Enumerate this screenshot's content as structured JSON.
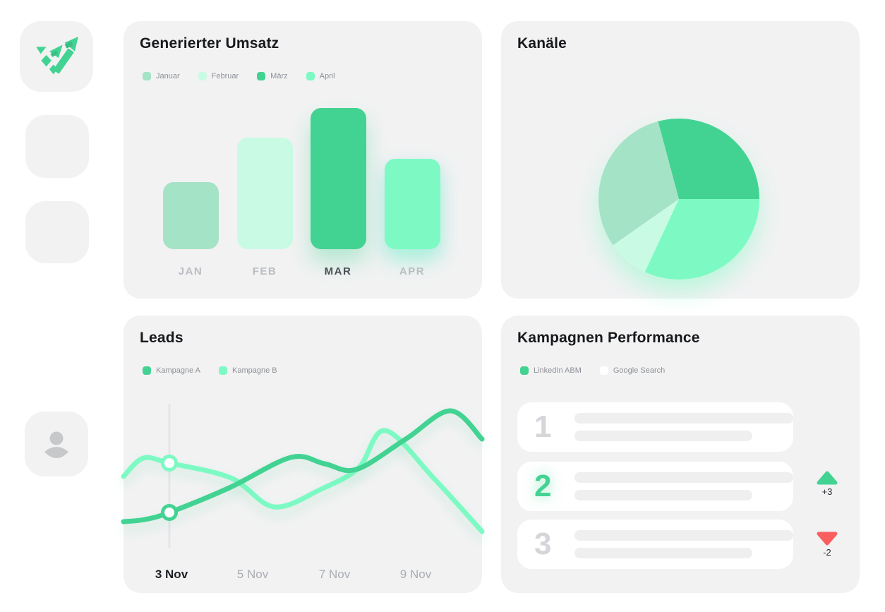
{
  "page": {
    "background": "#ffffff",
    "card_background": "#f2f2f3",
    "accent_green": "#42d392",
    "accent_mint": "#7dfac4",
    "alert_red": "#fa5f60"
  },
  "sidebar": {
    "logo_icon": "trending-up-arrows",
    "logo_color": "#42d392",
    "avatar_icon": "person",
    "placeholder_count": 2
  },
  "revenue": {
    "title": "Generierter Umsatz",
    "legend": [
      {
        "label": "Januar",
        "color": "#a5e3c6"
      },
      {
        "label": "Februar",
        "color": "#c9fbe4"
      },
      {
        "label": "März",
        "color": "#42d392"
      },
      {
        "label": "April",
        "color": "#7dfac4"
      }
    ],
    "bars": [
      {
        "label": "JAN",
        "value": 47.5,
        "color": "#a5e3c6"
      },
      {
        "label": "FEB",
        "value": 79,
        "color": "#c9fbe4"
      },
      {
        "label": "MAR",
        "value": 100,
        "color": "#42d392"
      },
      {
        "label": "APR",
        "value": 64,
        "color": "#7dfac4"
      }
    ],
    "active_label": "MAR"
  },
  "channels": {
    "title": "Kanäle",
    "start_angle": -15,
    "slices": [
      {
        "deg": 105,
        "percent": 29,
        "color": "#42d392"
      },
      {
        "deg": 115,
        "percent": 32,
        "color": "#7dfac4"
      },
      {
        "deg": 30,
        "percent": 8,
        "color": "#c9fbe4"
      },
      {
        "deg": 110,
        "percent": 31,
        "color": "#a5e3c6"
      }
    ]
  },
  "leads": {
    "title": "Leads",
    "legend": [
      {
        "label": "Kampagne A",
        "color": "#42d392"
      },
      {
        "label": "Kampagne B",
        "color": "#7dfac4"
      }
    ],
    "x_labels": [
      "3 Nov",
      "5 Nov",
      "7 Nov",
      "9 Nov"
    ],
    "active_x_label": "3 Nov",
    "marker_line_x": 65,
    "series": [
      {
        "name": "Kampagne A",
        "color": "#42d392",
        "points": [
          [
            0,
            179
          ],
          [
            30,
            176
          ],
          [
            65,
            166
          ],
          [
            150,
            131
          ],
          [
            237,
            88
          ],
          [
            285,
            97
          ],
          [
            330,
            105
          ],
          [
            400,
            62
          ],
          [
            463,
            22
          ],
          [
            508,
            62
          ]
        ]
      },
      {
        "name": "Kampagne B",
        "color": "#7dfac4",
        "points": [
          [
            0,
            115
          ],
          [
            28,
            89
          ],
          [
            65,
            96
          ],
          [
            152,
            117
          ],
          [
            213,
            158
          ],
          [
            280,
            133
          ],
          [
            333,
            103
          ],
          [
            371,
            50
          ],
          [
            440,
            118
          ],
          [
            508,
            193
          ]
        ]
      }
    ],
    "markers": [
      {
        "x": 65,
        "y": 96,
        "color": "#7dfac4"
      },
      {
        "x": 65,
        "y": 166,
        "color": "#42d392"
      }
    ]
  },
  "campaigns": {
    "title": "Kampagnen Performance",
    "legend": [
      {
        "label": "LinkedIn ABM",
        "color": "#42d392"
      },
      {
        "label": "Google Search",
        "color": "#ffffff"
      }
    ],
    "rows": [
      {
        "rank": "1",
        "highlight": false
      },
      {
        "rank": "2",
        "highlight": true,
        "delta": {
          "direction": "up",
          "label": "+3",
          "color": "#42d392"
        }
      },
      {
        "rank": "3",
        "highlight": false,
        "delta": {
          "direction": "down",
          "label": "-2",
          "color": "#fa5f60"
        }
      }
    ]
  },
  "chart_data": [
    {
      "type": "bar",
      "title": "Generierter Umsatz",
      "categories": [
        "JAN",
        "FEB",
        "MAR",
        "APR"
      ],
      "values": [
        47.5,
        79,
        100,
        64
      ],
      "ylim": [
        0,
        100
      ],
      "ylabel": "",
      "xlabel": "",
      "legend": [
        "Januar",
        "Februar",
        "März",
        "April"
      ],
      "grid": false,
      "note": "values are relative bar heights in % of max; no numeric axis shown"
    },
    {
      "type": "pie",
      "title": "Kanäle",
      "values": [
        29,
        32,
        8,
        31
      ],
      "colors": [
        "#42d392",
        "#7dfac4",
        "#c9fbe4",
        "#a5e3c6"
      ],
      "start_angle_deg_from_top": -15,
      "note": "no slice labels or legend shown"
    },
    {
      "type": "line",
      "title": "Leads",
      "categories": [
        "3 Nov",
        "5 Nov",
        "7 Nov",
        "9 Nov"
      ],
      "series": [
        {
          "name": "Kampagne A",
          "values_rel": [
            0.24,
            0.52,
            0.58,
            0.93
          ]
        },
        {
          "name": "Kampagne B",
          "values_rel": [
            0.57,
            0.3,
            0.55,
            0.78
          ]
        }
      ],
      "grid": false,
      "legend_position": "top-left",
      "note": "no y-axis shown; values are relative heights at the four labeled dates; selected date 3 Nov has ring markers on both series"
    },
    {
      "type": "table",
      "title": "Kampagnen Performance",
      "legend": [
        "LinkedIn ABM",
        "Google Search"
      ],
      "rows": [
        {
          "rank": 1,
          "change": null
        },
        {
          "rank": 2,
          "change": "+3"
        },
        {
          "rank": 3,
          "change": "-2"
        }
      ],
      "note": "row content shown as skeleton placeholder bars"
    }
  ]
}
